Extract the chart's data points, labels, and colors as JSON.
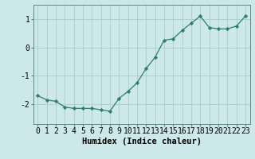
{
  "x": [
    0,
    1,
    2,
    3,
    4,
    5,
    6,
    7,
    8,
    9,
    10,
    11,
    12,
    13,
    14,
    15,
    16,
    17,
    18,
    19,
    20,
    21,
    22,
    23
  ],
  "y": [
    -1.7,
    -1.85,
    -1.9,
    -2.1,
    -2.15,
    -2.15,
    -2.15,
    -2.2,
    -2.25,
    -1.8,
    -1.55,
    -1.25,
    -0.75,
    -0.35,
    0.25,
    0.3,
    0.6,
    0.85,
    1.1,
    0.7,
    0.65,
    0.65,
    0.75,
    1.1
  ],
  "line_color": "#2e7d6e",
  "marker": "D",
  "marker_size": 2.2,
  "bg_color": "#cce8e8",
  "grid_color": "#aed0ce",
  "xlabel": "Humidex (Indice chaleur)",
  "xlabel_fontsize": 7.5,
  "tick_fontsize": 7,
  "ylim": [
    -2.7,
    1.5
  ],
  "yticks": [
    -2,
    -1,
    0,
    1
  ],
  "xticks": [
    0,
    1,
    2,
    3,
    4,
    5,
    6,
    7,
    8,
    9,
    10,
    11,
    12,
    13,
    14,
    15,
    16,
    17,
    18,
    19,
    20,
    21,
    22,
    23
  ]
}
